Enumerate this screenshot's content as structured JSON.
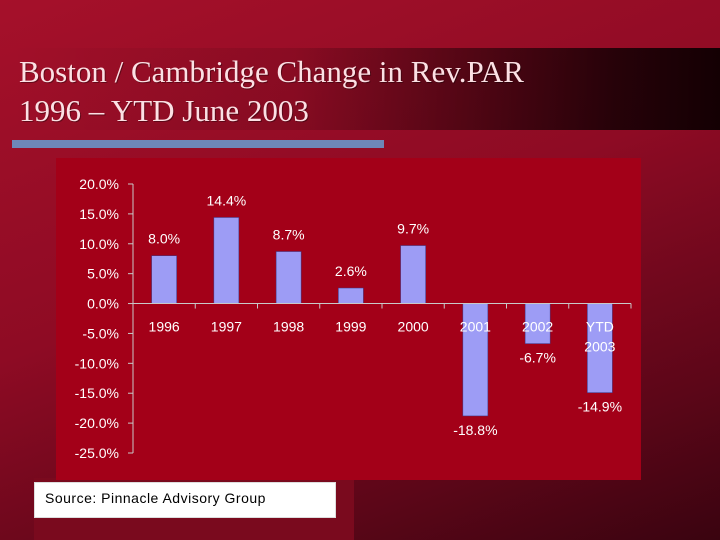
{
  "slide": {
    "title_line1": "Boston / Cambridge Change in Rev.PAR",
    "title_line2": "1996 – YTD June 2003",
    "source": "Source: Pinnacle Advisory Group"
  },
  "colors": {
    "bar": "#9d9cf5",
    "plot_background": "#a30018",
    "text": "#ffffff"
  },
  "chart_data": {
    "type": "bar",
    "title": "",
    "xlabel": "",
    "ylabel": "",
    "categories": [
      "1996",
      "1997",
      "1998",
      "1999",
      "2000",
      "2001",
      "2002",
      "YTD\n2003"
    ],
    "values": [
      8.0,
      14.4,
      8.7,
      2.6,
      9.7,
      -18.8,
      -6.7,
      -14.9
    ],
    "data_labels": [
      "8.0%",
      "14.4%",
      "8.7%",
      "2.6%",
      "9.7%",
      "-18.8%",
      "-6.7%",
      "-14.9%"
    ],
    "ylim": [
      -25,
      20
    ],
    "yticks": [
      20,
      15,
      10,
      5,
      0,
      -5,
      -10,
      -15,
      -20,
      -25
    ],
    "ytick_labels": [
      "20.0%",
      "15.0%",
      "10.0%",
      "5.0%",
      "0.0%",
      "-5.0%",
      "-10.0%",
      "-15.0%",
      "-20.0%",
      "-25.0%"
    ],
    "grid": false,
    "legend": "none"
  }
}
